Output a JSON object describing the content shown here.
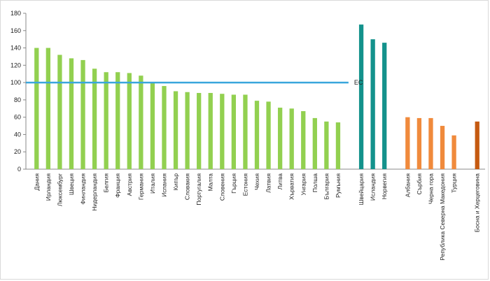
{
  "chart_data": {
    "type": "bar",
    "title": "",
    "xlabel": "",
    "ylabel": "",
    "ylim": [
      0,
      180
    ],
    "yticks": [
      0,
      20,
      40,
      60,
      80,
      100,
      120,
      140,
      160,
      180
    ],
    "grid": false,
    "legend": "none",
    "reference_line": {
      "label": "ЕС",
      "value": 100,
      "color": "#3aa6dc"
    },
    "colors": {
      "eu": "#92d050",
      "efta": "#14928c",
      "candidates": "#f08a3c",
      "potential": "#c55a11"
    },
    "groups": [
      {
        "key": "eu",
        "categories": [
          "Дания",
          "Ирландия",
          "Люксембург",
          "Швеция",
          "Финландия",
          "Нидерландия",
          "Белгия",
          "Франция",
          "Австрия",
          "Германия",
          "Италия",
          "Испания",
          "Кипър",
          "Словакия",
          "Португалия",
          "Малта",
          "Словения",
          "Гърция",
          "Естония",
          "Чехия",
          "Латвия",
          "Литва",
          "Хърватия",
          "Унгария",
          "Полша",
          "България",
          "Румъния"
        ],
        "values": [
          140,
          140,
          132,
          128,
          126,
          116,
          112,
          112,
          111,
          108,
          100,
          96,
          90,
          89,
          88,
          88,
          87,
          86,
          86,
          79,
          78,
          71,
          70,
          67,
          59,
          55,
          54
        ]
      },
      {
        "key": "efta",
        "categories": [
          "Швейцария",
          "Исландия",
          "Норвегия"
        ],
        "values": [
          167,
          150,
          146
        ]
      },
      {
        "key": "candidates",
        "categories": [
          "Албания",
          "Сърбия",
          "Черна гора",
          "Република Северна Македония",
          "Турция"
        ],
        "values": [
          60,
          59,
          59,
          50,
          39
        ]
      },
      {
        "key": "potential",
        "categories": [
          "Босна и Херцеговина"
        ],
        "values": [
          55
        ]
      }
    ]
  }
}
